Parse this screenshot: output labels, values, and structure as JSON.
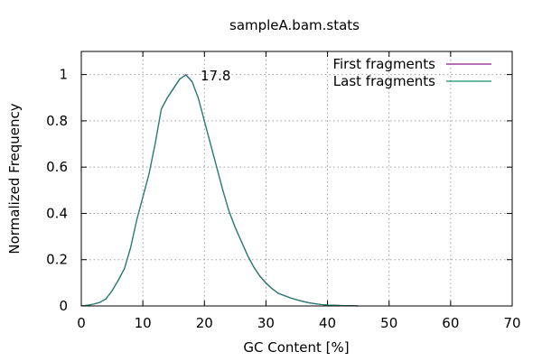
{
  "chart_data": {
    "type": "line",
    "title": "sampleA.bam.stats",
    "xlabel": "GC Content [%]",
    "ylabel": "Normalized Frequency",
    "xlim": [
      0,
      70
    ],
    "ylim": [
      0,
      1.1
    ],
    "xticks": [
      0,
      10,
      20,
      30,
      40,
      50,
      60,
      70
    ],
    "yticks": [
      0,
      0.2,
      0.4,
      0.6,
      0.8,
      1
    ],
    "ytick_labels": [
      "0",
      "0.2",
      "0.4",
      "0.6",
      "0.8",
      "1"
    ],
    "xtick_labels": [
      "0",
      "10",
      "20",
      "30",
      "40",
      "50",
      "60",
      "70"
    ],
    "grid": true,
    "legend_position": "top-right",
    "annotation": {
      "text": "17.8",
      "x": 17.8,
      "y": 1.0
    },
    "series": [
      {
        "name": "First fragments",
        "color": "#8b1a8b",
        "x": [
          0,
          1,
          2,
          3,
          4,
          5,
          6,
          7,
          8,
          9,
          10,
          11,
          12,
          13,
          14,
          15,
          16,
          17,
          18,
          19,
          20,
          21,
          22,
          23,
          24,
          25,
          26,
          27,
          28,
          29,
          30,
          31,
          32,
          33,
          34,
          35,
          36,
          37,
          38,
          39,
          40,
          41,
          42,
          43,
          44,
          45
        ],
        "y": [
          0,
          0.003,
          0.008,
          0.015,
          0.03,
          0.065,
          0.11,
          0.16,
          0.25,
          0.37,
          0.47,
          0.57,
          0.7,
          0.85,
          0.9,
          0.94,
          0.98,
          1.0,
          0.97,
          0.9,
          0.8,
          0.7,
          0.6,
          0.5,
          0.41,
          0.34,
          0.28,
          0.22,
          0.17,
          0.13,
          0.1,
          0.075,
          0.055,
          0.045,
          0.035,
          0.027,
          0.02,
          0.014,
          0.01,
          0.006,
          0.004,
          0.003,
          0.002,
          0.001,
          0.001,
          0
        ]
      },
      {
        "name": "Last fragments",
        "color": "#1a8b6e",
        "x": [
          0,
          1,
          2,
          3,
          4,
          5,
          6,
          7,
          8,
          9,
          10,
          11,
          12,
          13,
          14,
          15,
          16,
          17,
          18,
          19,
          20,
          21,
          22,
          23,
          24,
          25,
          26,
          27,
          28,
          29,
          30,
          31,
          32,
          33,
          34,
          35,
          36,
          37,
          38,
          39,
          40,
          41,
          42,
          43,
          44,
          45
        ],
        "y": [
          0,
          0.003,
          0.008,
          0.016,
          0.031,
          0.066,
          0.112,
          0.162,
          0.252,
          0.372,
          0.472,
          0.572,
          0.702,
          0.852,
          0.902,
          0.942,
          0.982,
          0.998,
          0.968,
          0.898,
          0.798,
          0.698,
          0.598,
          0.498,
          0.408,
          0.338,
          0.278,
          0.218,
          0.168,
          0.128,
          0.098,
          0.074,
          0.054,
          0.044,
          0.034,
          0.026,
          0.019,
          0.013,
          0.009,
          0.006,
          0.004,
          0.003,
          0.002,
          0.001,
          0.001,
          0
        ]
      }
    ]
  }
}
